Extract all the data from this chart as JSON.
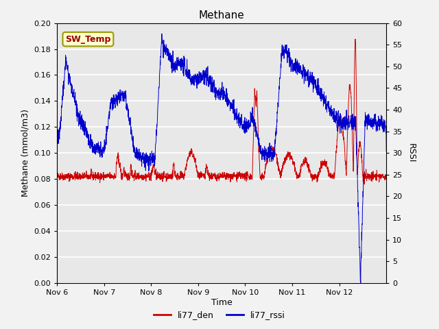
{
  "title": "Methane",
  "ylabel_left": "Methane (mmol/m3)",
  "ylabel_right": "RSSI",
  "xlabel": "Time",
  "ylim_left": [
    0.0,
    0.2
  ],
  "ylim_right": [
    0,
    60
  ],
  "yticks_left": [
    0.0,
    0.02,
    0.04,
    0.06,
    0.08,
    0.1,
    0.12,
    0.14,
    0.16,
    0.18,
    0.2
  ],
  "yticks_right": [
    0,
    5,
    10,
    15,
    20,
    25,
    30,
    35,
    40,
    45,
    50,
    55,
    60
  ],
  "xtick_labels": [
    "Nov 6",
    "Nov 7",
    "Nov 8",
    "Nov 9",
    "Nov 10",
    "Nov 11",
    "Nov 12"
  ],
  "line_red_label": "li77_den",
  "line_blue_label": "li77_rssi",
  "line_red_color": "#cc0000",
  "line_blue_color": "#0000cc",
  "sw_temp_label": "SW_Temp",
  "sw_temp_bg": "#ffffcc",
  "sw_temp_text_color": "#990000",
  "sw_temp_border_color": "#999900",
  "plot_bg_color": "#e8e8e8",
  "fig_bg_color": "#f2f2f2",
  "grid_color": "#ffffff"
}
